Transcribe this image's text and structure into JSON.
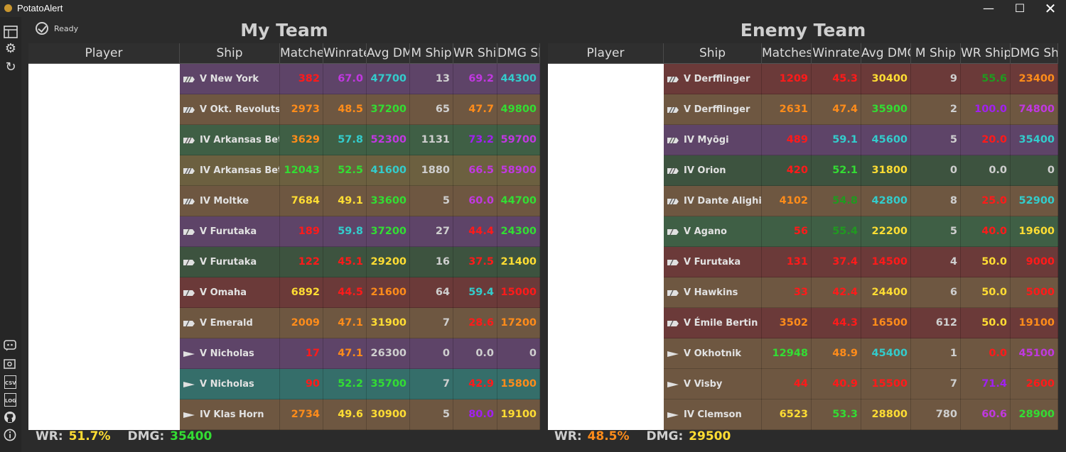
{
  "window": {
    "title": "PotatoAlert"
  },
  "status": {
    "label": "Ready"
  },
  "colors": {
    "purple_bg": "#5e4468",
    "brown_bg": "#6e5741",
    "olive_bg": "#6c6040",
    "green_bg": "#3f5f45",
    "dkgreen_bg": "#3d533f",
    "red_bg": "#6b3a39",
    "teal_bg": "#356e6a",
    "red": "#ff1a1a",
    "orange": "#ff8c1a",
    "yellow": "#ffdd33",
    "green": "#33dd33",
    "dkgreen": "#209a20",
    "cyan": "#33cccc",
    "purple": "#c038e0",
    "violet": "#a020f0",
    "white": "#cfcfcf"
  },
  "my_team": {
    "title": "My Team",
    "headers": [
      "Player",
      "Ship",
      "Matches",
      "Winrate",
      "Avg DMG",
      "M Ship",
      "WR Ship",
      "DMG Ship"
    ],
    "rows": [
      {
        "bg": "purple_bg",
        "ship": "V New York",
        "type": "bb",
        "matches": "382",
        "matches_c": "red",
        "winrate": "67.0",
        "winrate_c": "purple",
        "dmg": "47700",
        "dmg_c": "cyan",
        "mship": "13",
        "mship_c": "white",
        "wrship": "69.2",
        "wrship_c": "purple",
        "dmgship": "44300",
        "dmgship_c": "cyan"
      },
      {
        "bg": "brown_bg",
        "ship": "V Okt. Revolutsiya",
        "type": "bb",
        "matches": "2973",
        "matches_c": "orange",
        "winrate": "48.5",
        "winrate_c": "orange",
        "dmg": "37200",
        "dmg_c": "green",
        "mship": "65",
        "mship_c": "white",
        "wrship": "47.7",
        "wrship_c": "orange",
        "dmgship": "49800",
        "dmgship_c": "green"
      },
      {
        "bg": "green_bg",
        "ship": "IV Arkansas Beta",
        "type": "bb",
        "matches": "3629",
        "matches_c": "orange",
        "winrate": "57.8",
        "winrate_c": "cyan",
        "dmg": "52300",
        "dmg_c": "purple",
        "mship": "1131",
        "mship_c": "white",
        "wrship": "73.2",
        "wrship_c": "violet",
        "dmgship": "59700",
        "dmgship_c": "purple"
      },
      {
        "bg": "olive_bg",
        "ship": "IV Arkansas Beta",
        "type": "bb",
        "matches": "12043",
        "matches_c": "green",
        "winrate": "52.5",
        "winrate_c": "green",
        "dmg": "41600",
        "dmg_c": "cyan",
        "mship": "1880",
        "mship_c": "white",
        "wrship": "66.5",
        "wrship_c": "purple",
        "dmgship": "58900",
        "dmgship_c": "purple"
      },
      {
        "bg": "brown_bg",
        "ship": "IV Moltke",
        "type": "bb",
        "matches": "7684",
        "matches_c": "yellow",
        "winrate": "49.1",
        "winrate_c": "yellow",
        "dmg": "33600",
        "dmg_c": "green",
        "mship": "5",
        "mship_c": "white",
        "wrship": "60.0",
        "wrship_c": "purple",
        "dmgship": "44700",
        "dmgship_c": "green"
      },
      {
        "bg": "purple_bg",
        "ship": "V Furutaka",
        "type": "ca",
        "matches": "189",
        "matches_c": "red",
        "winrate": "59.8",
        "winrate_c": "cyan",
        "dmg": "37200",
        "dmg_c": "green",
        "mship": "27",
        "mship_c": "white",
        "wrship": "44.4",
        "wrship_c": "red",
        "dmgship": "24300",
        "dmgship_c": "green"
      },
      {
        "bg": "dkgreen_bg",
        "ship": "V Furutaka",
        "type": "ca",
        "matches": "122",
        "matches_c": "red",
        "winrate": "45.1",
        "winrate_c": "red",
        "dmg": "29200",
        "dmg_c": "yellow",
        "mship": "16",
        "mship_c": "white",
        "wrship": "37.5",
        "wrship_c": "red",
        "dmgship": "21400",
        "dmgship_c": "yellow"
      },
      {
        "bg": "red_bg",
        "ship": "V Omaha",
        "type": "ca",
        "matches": "6892",
        "matches_c": "yellow",
        "winrate": "44.5",
        "winrate_c": "red",
        "dmg": "21600",
        "dmg_c": "orange",
        "mship": "64",
        "mship_c": "white",
        "wrship": "59.4",
        "wrship_c": "cyan",
        "dmgship": "15000",
        "dmgship_c": "red"
      },
      {
        "bg": "brown_bg",
        "ship": "V Emerald",
        "type": "ca",
        "matches": "2009",
        "matches_c": "orange",
        "winrate": "47.1",
        "winrate_c": "orange",
        "dmg": "31900",
        "dmg_c": "yellow",
        "mship": "7",
        "mship_c": "white",
        "wrship": "28.6",
        "wrship_c": "red",
        "dmgship": "17200",
        "dmgship_c": "orange"
      },
      {
        "bg": "purple_bg",
        "ship": "V Nicholas",
        "type": "dd",
        "matches": "17",
        "matches_c": "red",
        "winrate": "47.1",
        "winrate_c": "orange",
        "dmg": "26300",
        "dmg_c": "white",
        "mship": "0",
        "mship_c": "white",
        "wrship": "0.0",
        "wrship_c": "white",
        "dmgship": "0",
        "dmgship_c": "white"
      },
      {
        "bg": "teal_bg",
        "ship": "V Nicholas",
        "type": "dd",
        "matches": "90",
        "matches_c": "red",
        "winrate": "52.2",
        "winrate_c": "green",
        "dmg": "35700",
        "dmg_c": "green",
        "mship": "7",
        "mship_c": "white",
        "wrship": "42.9",
        "wrship_c": "red",
        "dmgship": "15800",
        "dmgship_c": "orange"
      },
      {
        "bg": "brown_bg",
        "ship": "IV Klas Horn",
        "type": "dd",
        "matches": "2734",
        "matches_c": "orange",
        "winrate": "49.6",
        "winrate_c": "yellow",
        "dmg": "30900",
        "dmg_c": "yellow",
        "mship": "5",
        "mship_c": "white",
        "wrship": "80.0",
        "wrship_c": "violet",
        "dmgship": "19100",
        "dmgship_c": "yellow"
      }
    ],
    "footer": {
      "wr_label": "WR:",
      "wr": "51.7%",
      "wr_c": "yellow",
      "dmg_label": "DMG:",
      "dmg": "35400",
      "dmg_c": "green"
    }
  },
  "enemy_team": {
    "title": "Enemy Team",
    "headers": [
      "Player",
      "Ship",
      "Matches",
      "Winrate",
      "Avg DMG",
      "M Ship",
      "WR Ship",
      "DMG Ship"
    ],
    "rows": [
      {
        "bg": "red_bg",
        "ship": "V Derfflinger",
        "type": "bb",
        "matches": "1209",
        "matches_c": "red",
        "winrate": "45.3",
        "winrate_c": "red",
        "dmg": "30400",
        "dmg_c": "yellow",
        "mship": "9",
        "mship_c": "white",
        "wrship": "55.6",
        "wrship_c": "dkgreen",
        "dmgship": "23400",
        "dmgship_c": "orange"
      },
      {
        "bg": "brown_bg",
        "ship": "V Derfflinger",
        "type": "bb",
        "matches": "2631",
        "matches_c": "orange",
        "winrate": "47.4",
        "winrate_c": "orange",
        "dmg": "35900",
        "dmg_c": "green",
        "mship": "2",
        "mship_c": "white",
        "wrship": "100.0",
        "wrship_c": "violet",
        "dmgship": "74800",
        "dmgship_c": "purple"
      },
      {
        "bg": "purple_bg",
        "ship": "IV Myōgi",
        "type": "bb",
        "matches": "489",
        "matches_c": "red",
        "winrate": "59.1",
        "winrate_c": "cyan",
        "dmg": "45600",
        "dmg_c": "cyan",
        "mship": "5",
        "mship_c": "white",
        "wrship": "20.0",
        "wrship_c": "red",
        "dmgship": "35400",
        "dmgship_c": "cyan"
      },
      {
        "bg": "dkgreen_bg",
        "ship": "IV Orion",
        "type": "bb",
        "matches": "420",
        "matches_c": "red",
        "winrate": "52.1",
        "winrate_c": "green",
        "dmg": "31800",
        "dmg_c": "yellow",
        "mship": "0",
        "mship_c": "white",
        "wrship": "0.0",
        "wrship_c": "white",
        "dmgship": "0",
        "dmgship_c": "white"
      },
      {
        "bg": "brown_bg",
        "ship": "IV Dante Alighieri",
        "type": "bb",
        "matches": "4102",
        "matches_c": "orange",
        "winrate": "54.8",
        "winrate_c": "dkgreen",
        "dmg": "42800",
        "dmg_c": "cyan",
        "mship": "8",
        "mship_c": "white",
        "wrship": "25.0",
        "wrship_c": "red",
        "dmgship": "52900",
        "dmgship_c": "cyan"
      },
      {
        "bg": "green_bg",
        "ship": "V Agano",
        "type": "ca",
        "matches": "56",
        "matches_c": "red",
        "winrate": "55.4",
        "winrate_c": "dkgreen",
        "dmg": "22200",
        "dmg_c": "yellow",
        "mship": "5",
        "mship_c": "white",
        "wrship": "40.0",
        "wrship_c": "red",
        "dmgship": "19600",
        "dmgship_c": "yellow"
      },
      {
        "bg": "red_bg",
        "ship": "V Furutaka",
        "type": "ca",
        "matches": "131",
        "matches_c": "red",
        "winrate": "37.4",
        "winrate_c": "red",
        "dmg": "14500",
        "dmg_c": "red",
        "mship": "4",
        "mship_c": "white",
        "wrship": "50.0",
        "wrship_c": "yellow",
        "dmgship": "9000",
        "dmgship_c": "red"
      },
      {
        "bg": "brown_bg",
        "ship": "V Hawkins",
        "type": "ca",
        "matches": "33",
        "matches_c": "red",
        "winrate": "42.4",
        "winrate_c": "red",
        "dmg": "24400",
        "dmg_c": "yellow",
        "mship": "6",
        "mship_c": "white",
        "wrship": "50.0",
        "wrship_c": "yellow",
        "dmgship": "5000",
        "dmgship_c": "red"
      },
      {
        "bg": "red_bg",
        "ship": "V Émile Bertin",
        "type": "ca",
        "matches": "3502",
        "matches_c": "orange",
        "winrate": "44.3",
        "winrate_c": "red",
        "dmg": "16500",
        "dmg_c": "orange",
        "mship": "612",
        "mship_c": "white",
        "wrship": "50.0",
        "wrship_c": "yellow",
        "dmgship": "19100",
        "dmgship_c": "orange"
      },
      {
        "bg": "brown_bg",
        "ship": "V Okhotnik",
        "type": "dd",
        "matches": "12948",
        "matches_c": "green",
        "winrate": "48.9",
        "winrate_c": "orange",
        "dmg": "45400",
        "dmg_c": "cyan",
        "mship": "1",
        "mship_c": "white",
        "wrship": "0.0",
        "wrship_c": "red",
        "dmgship": "45100",
        "dmgship_c": "purple"
      },
      {
        "bg": "brown_bg",
        "ship": "V Visby",
        "type": "dd",
        "matches": "44",
        "matches_c": "red",
        "winrate": "40.9",
        "winrate_c": "red",
        "dmg": "15500",
        "dmg_c": "red",
        "mship": "7",
        "mship_c": "white",
        "wrship": "71.4",
        "wrship_c": "violet",
        "dmgship": "2600",
        "dmgship_c": "red"
      },
      {
        "bg": "brown_bg",
        "ship": "IV Clemson",
        "type": "dd",
        "matches": "6523",
        "matches_c": "yellow",
        "winrate": "53.3",
        "winrate_c": "green",
        "dmg": "28800",
        "dmg_c": "yellow",
        "mship": "780",
        "mship_c": "white",
        "wrship": "60.6",
        "wrship_c": "purple",
        "dmgship": "28900",
        "dmgship_c": "green"
      }
    ],
    "footer": {
      "wr_label": "WR:",
      "wr": "48.5%",
      "wr_c": "orange",
      "dmg_label": "DMG:",
      "dmg": "29500",
      "dmg_c": "yellow"
    }
  },
  "sidebar": {
    "top_icons": [
      "table-icon",
      "gear-icon",
      "refresh-icon"
    ],
    "bottom_icons": [
      "discord-icon",
      "screenshot-icon",
      "csv-icon",
      "log-icon",
      "github-icon",
      "info-icon"
    ],
    "csv_label": "CSV",
    "log_label": "LOG"
  }
}
